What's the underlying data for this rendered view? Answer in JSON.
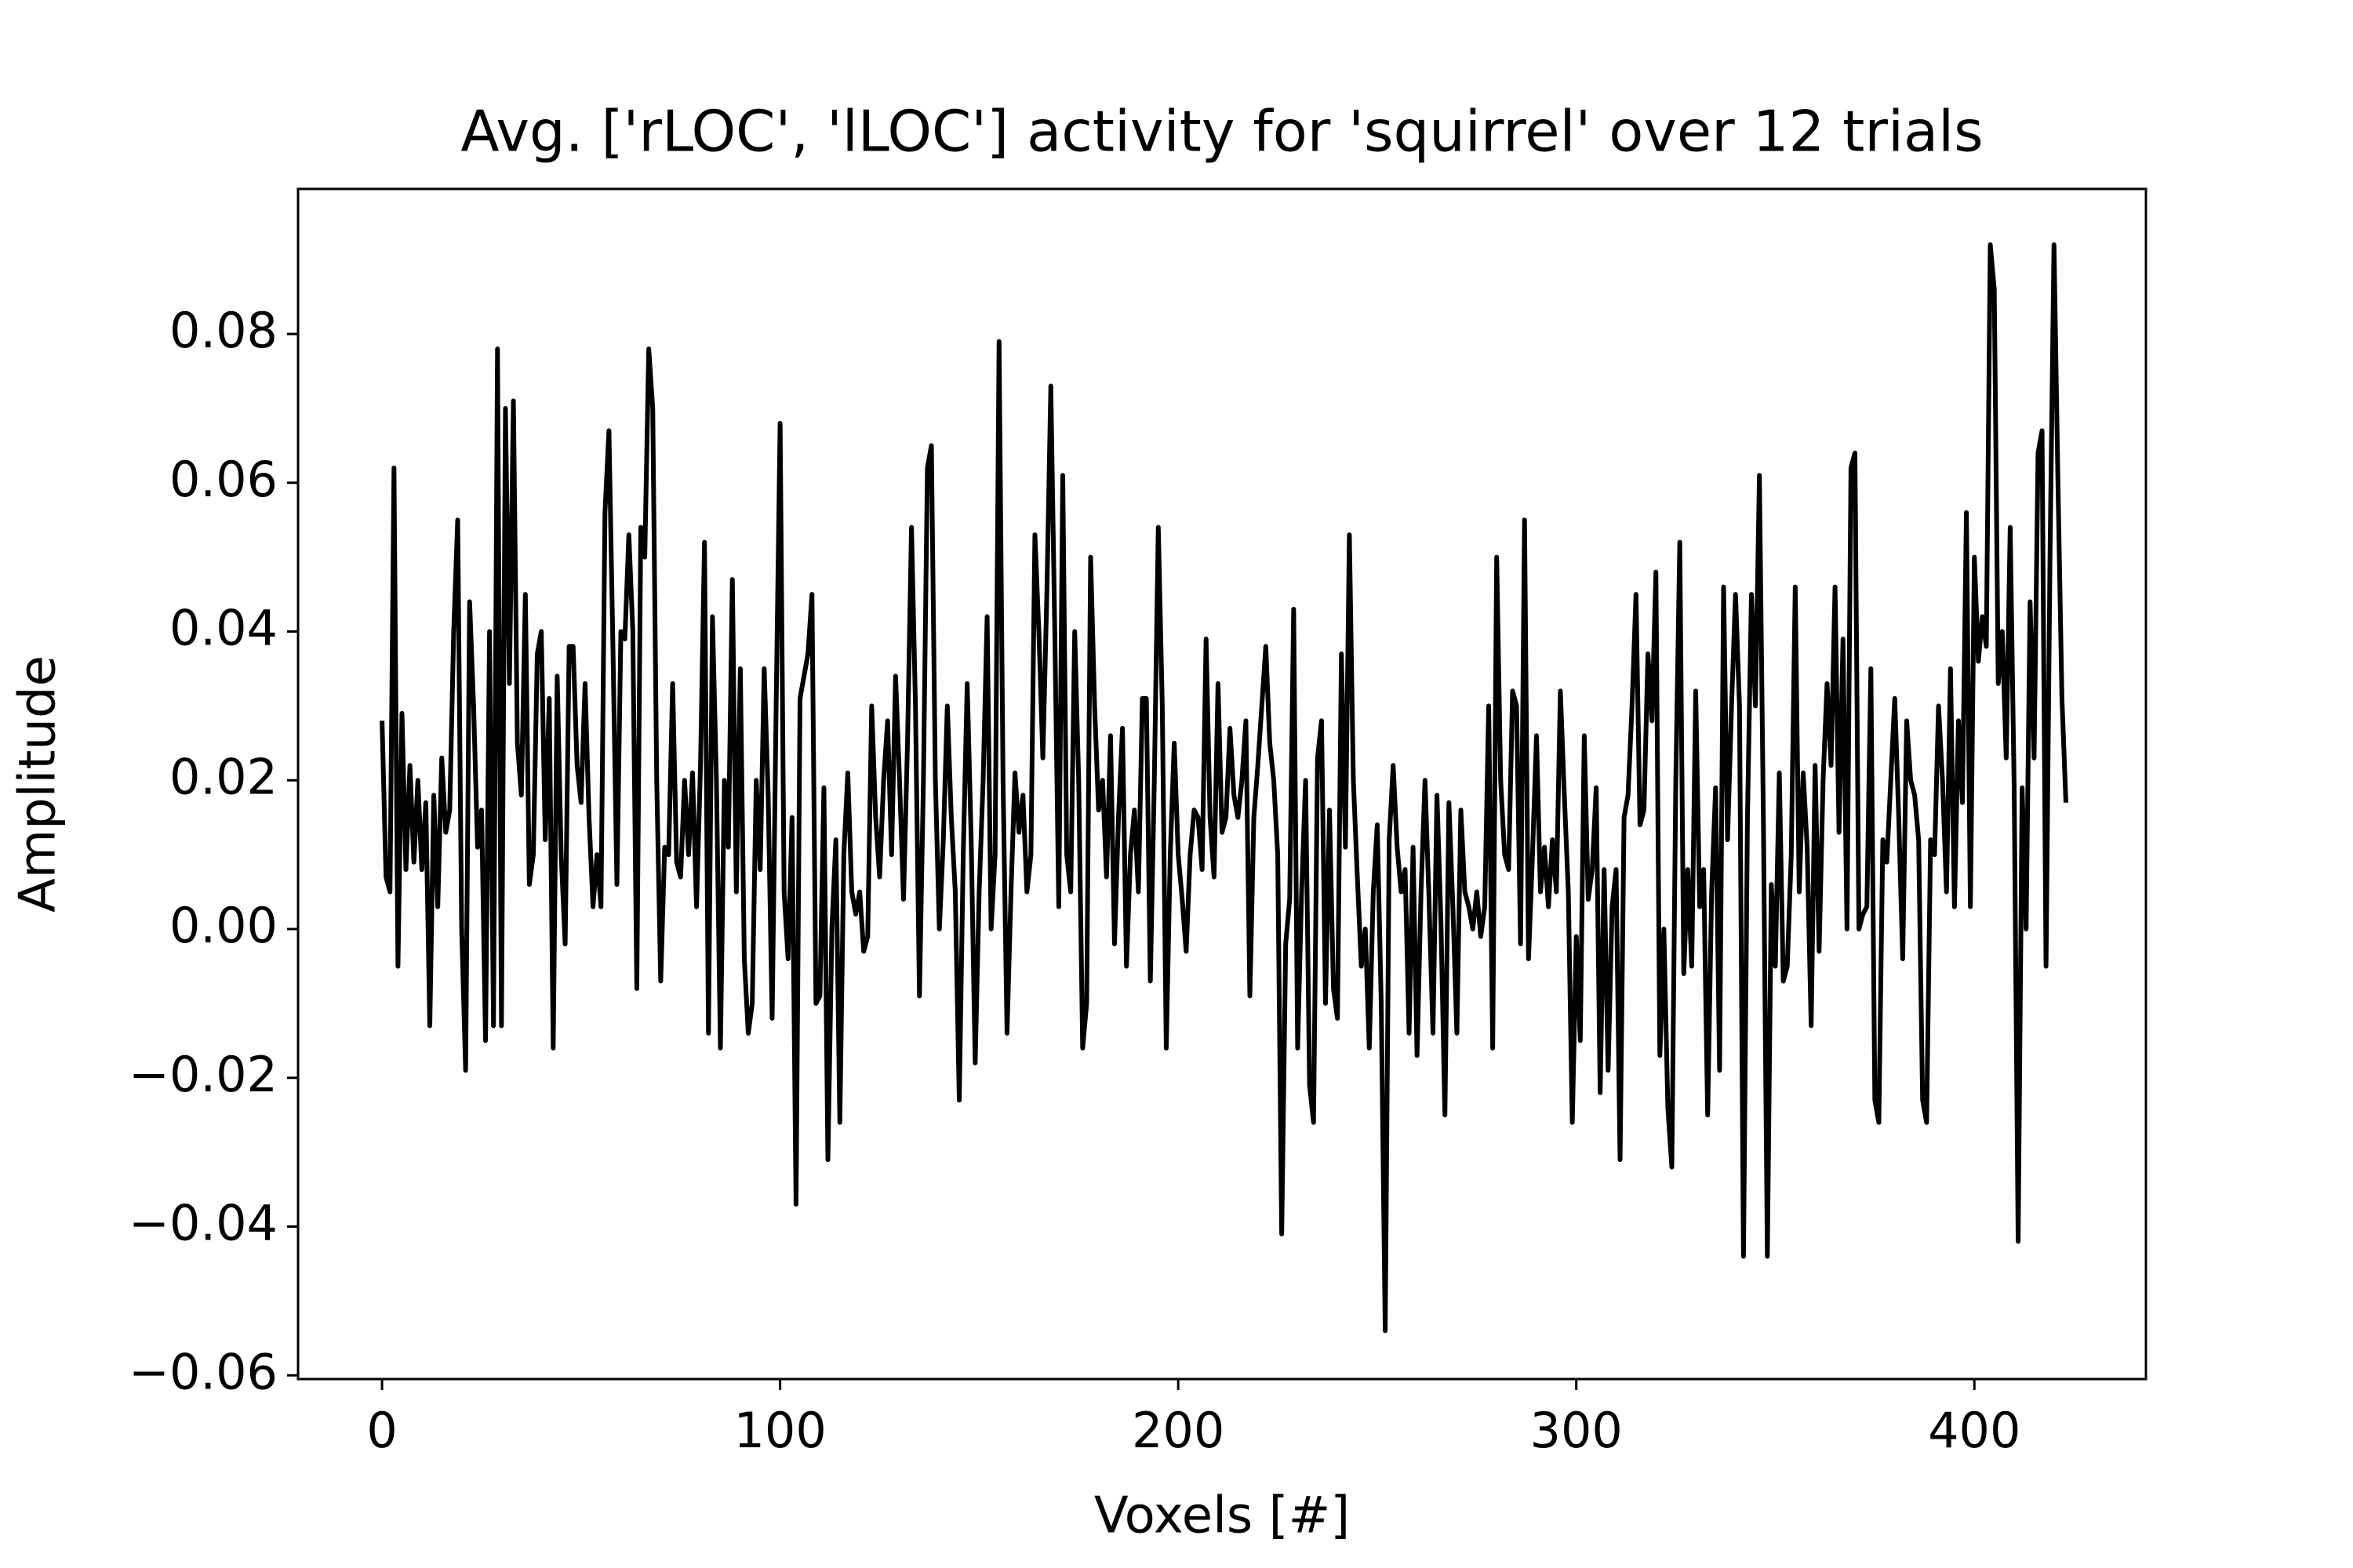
{
  "chart_data": {
    "type": "line",
    "title": "Avg. ['rLOC', 'lLOC'] activity for 'squirrel' over 12 trials",
    "x_label": "Voxels [#]",
    "y_label": "Amplitude",
    "xlim": [
      -21.1,
      443.1
    ],
    "ylim": [
      -0.0605,
      0.0995
    ],
    "xticks": [
      0,
      100,
      200,
      300,
      400
    ],
    "yticks": [
      {
        "value": -0.06,
        "label": "−0.06"
      },
      {
        "value": -0.04,
        "label": "−0.04"
      },
      {
        "value": -0.02,
        "label": "−0.02"
      },
      {
        "value": 0,
        "label": "0.00"
      },
      0.02,
      0.04,
      0.06,
      0.08
    ],
    "grid": false,
    "color": "#000000",
    "x": [
      0,
      1,
      2,
      3,
      4,
      5,
      6,
      7,
      8,
      9,
      10,
      11,
      12,
      13,
      14,
      15,
      16,
      17,
      18,
      19,
      20,
      21,
      22,
      23,
      24,
      25,
      26,
      27,
      28,
      29,
      30,
      31,
      32,
      33,
      34,
      35,
      36,
      37,
      38,
      39,
      40,
      41,
      42,
      43,
      44,
      45,
      46,
      47,
      48,
      49,
      50,
      51,
      52,
      53,
      54,
      55,
      56,
      57,
      58,
      59,
      60,
      61,
      62,
      63,
      64,
      65,
      66,
      67,
      68,
      69,
      70,
      71,
      72,
      73,
      74,
      75,
      76,
      77,
      78,
      79,
      80,
      81,
      82,
      83,
      84,
      85,
      86,
      87,
      88,
      89,
      90,
      91,
      92,
      93,
      94,
      95,
      96,
      97,
      98,
      99,
      100,
      101,
      102,
      103,
      104,
      105,
      106,
      107,
      108,
      109,
      110,
      111,
      112,
      113,
      114,
      115,
      116,
      117,
      118,
      119,
      120,
      121,
      122,
      123,
      124,
      125,
      126,
      127,
      128,
      129,
      130,
      131,
      132,
      133,
      134,
      135,
      136,
      137,
      138,
      139,
      140,
      141,
      142,
      143,
      144,
      145,
      146,
      147,
      148,
      149,
      150,
      151,
      152,
      153,
      154,
      155,
      156,
      157,
      158,
      159,
      160,
      161,
      162,
      163,
      164,
      165,
      166,
      167,
      168,
      169,
      170,
      171,
      172,
      173,
      174,
      175,
      176,
      177,
      178,
      179,
      180,
      181,
      182,
      183,
      184,
      185,
      186,
      187,
      188,
      189,
      190,
      191,
      192,
      193,
      194,
      195,
      196,
      197,
      198,
      199,
      200,
      201,
      202,
      203,
      204,
      205,
      206,
      207,
      208,
      209,
      210,
      211,
      212,
      213,
      214,
      215,
      216,
      217,
      218,
      219,
      220,
      221,
      222,
      223,
      224,
      225,
      226,
      227,
      228,
      229,
      230,
      231,
      232,
      233,
      234,
      235,
      236,
      237,
      238,
      239,
      240,
      241,
      242,
      243,
      244,
      245,
      246,
      247,
      248,
      249,
      250,
      251,
      252,
      253,
      254,
      255,
      256,
      257,
      258,
      259,
      260,
      261,
      262,
      263,
      264,
      265,
      266,
      267,
      268,
      269,
      270,
      271,
      272,
      273,
      274,
      275,
      276,
      277,
      278,
      279,
      280,
      281,
      282,
      283,
      284,
      285,
      286,
      287,
      288,
      289,
      290,
      291,
      292,
      293,
      294,
      295,
      296,
      297,
      298,
      299,
      300,
      301,
      302,
      303,
      304,
      305,
      306,
      307,
      308,
      309,
      310,
      311,
      312,
      313,
      314,
      315,
      316,
      317,
      318,
      319,
      320,
      321,
      322,
      323,
      324,
      325,
      326,
      327,
      328,
      329,
      330,
      331,
      332,
      333,
      334,
      335,
      336,
      337,
      338,
      339,
      340,
      341,
      342,
      343,
      344,
      345,
      346,
      347,
      348,
      349,
      350,
      351,
      352,
      353,
      354,
      355,
      356,
      357,
      358,
      359,
      360,
      361,
      362,
      363,
      364,
      365,
      366,
      367,
      368,
      369,
      370,
      371,
      372,
      373,
      374,
      375,
      376,
      377,
      378,
      379,
      380,
      381,
      382,
      383,
      384,
      385,
      386,
      387,
      388,
      389,
      390,
      391,
      392,
      393,
      394,
      395,
      396,
      397,
      398,
      399,
      400,
      401,
      402,
      403,
      404,
      405,
      406,
      407,
      408,
      409,
      410,
      411,
      412,
      413,
      414,
      415,
      416,
      417,
      418,
      419,
      420,
      421,
      422,
      423
    ],
    "values": [
      0.028,
      0.007,
      0.005,
      0.062,
      -0.005,
      0.029,
      0.008,
      0.022,
      0.009,
      0.02,
      0.008,
      0.017,
      -0.013,
      0.018,
      0.003,
      0.023,
      0.013,
      0.016,
      0.04,
      0.055,
      0.0,
      -0.019,
      0.044,
      0.03,
      0.011,
      0.016,
      -0.015,
      0.04,
      -0.013,
      0.078,
      -0.013,
      0.07,
      0.033,
      0.071,
      0.025,
      0.018,
      0.045,
      0.006,
      0.01,
      0.037,
      0.04,
      0.012,
      0.031,
      -0.016,
      0.034,
      0.01,
      -0.002,
      0.038,
      0.038,
      0.022,
      0.017,
      0.033,
      0.015,
      0.003,
      0.01,
      0.003,
      0.056,
      0.067,
      0.038,
      0.006,
      0.04,
      0.039,
      0.053,
      0.04,
      -0.008,
      0.054,
      0.05,
      0.078,
      0.07,
      0.02,
      -0.007,
      0.011,
      0.01,
      0.033,
      0.009,
      0.007,
      0.02,
      0.01,
      0.021,
      0.003,
      0.022,
      0.052,
      -0.014,
      0.042,
      0.02,
      -0.016,
      0.02,
      0.011,
      0.047,
      0.005,
      0.035,
      -0.004,
      -0.014,
      -0.01,
      0.02,
      0.008,
      0.035,
      0.018,
      -0.012,
      0.03,
      0.068,
      0.005,
      -0.004,
      0.015,
      -0.037,
      0.031,
      0.034,
      0.037,
      0.045,
      -0.01,
      -0.009,
      0.019,
      -0.031,
      0.0,
      0.012,
      -0.026,
      0.01,
      0.021,
      0.005,
      0.002,
      0.005,
      -0.003,
      -0.001,
      0.03,
      0.015,
      0.007,
      0.02,
      0.028,
      0.01,
      0.034,
      0.02,
      0.004,
      0.025,
      0.054,
      0.03,
      -0.009,
      0.02,
      0.062,
      0.065,
      0.02,
      0.0,
      0.012,
      0.03,
      0.015,
      0.005,
      -0.023,
      0.01,
      0.033,
      0.012,
      -0.018,
      0.005,
      0.02,
      0.042,
      0.0,
      0.01,
      0.079,
      0.02,
      -0.014,
      0.005,
      0.021,
      0.013,
      0.018,
      0.005,
      0.01,
      0.053,
      0.04,
      0.023,
      0.045,
      0.073,
      0.04,
      0.003,
      0.061,
      0.01,
      0.005,
      0.04,
      0.02,
      -0.016,
      -0.01,
      0.05,
      0.03,
      0.016,
      0.02,
      0.007,
      0.026,
      -0.002,
      0.015,
      0.027,
      -0.005,
      0.01,
      0.016,
      0.005,
      0.031,
      0.031,
      -0.007,
      0.02,
      0.054,
      0.03,
      -0.016,
      0.01,
      0.025,
      0.01,
      0.004,
      -0.003,
      0.01,
      0.016,
      0.015,
      0.008,
      0.039,
      0.015,
      0.007,
      0.033,
      0.013,
      0.015,
      0.027,
      0.018,
      0.015,
      0.02,
      0.028,
      -0.009,
      0.015,
      0.022,
      0.03,
      0.038,
      0.025,
      0.02,
      0.01,
      -0.041,
      -0.002,
      0.004,
      0.043,
      -0.016,
      0.005,
      0.02,
      -0.021,
      -0.026,
      0.023,
      0.028,
      -0.01,
      0.016,
      -0.008,
      -0.012,
      0.037,
      0.011,
      0.053,
      0.02,
      0.007,
      -0.005,
      0.0,
      -0.016,
      0.005,
      0.014,
      -0.01,
      -0.054,
      0.012,
      0.022,
      0.011,
      0.005,
      0.008,
      -0.014,
      0.011,
      -0.017,
      0.005,
      0.02,
      0.004,
      -0.014,
      0.018,
      0.001,
      -0.025,
      0.017,
      0.003,
      -0.014,
      0.016,
      0.005,
      0.003,
      0.0,
      0.005,
      -0.001,
      0.003,
      0.03,
      -0.016,
      0.05,
      0.02,
      0.01,
      0.008,
      0.032,
      0.03,
      -0.002,
      0.055,
      -0.004,
      0.01,
      0.026,
      0.005,
      0.011,
      0.003,
      0.012,
      0.005,
      0.032,
      0.018,
      0.005,
      -0.026,
      -0.001,
      -0.015,
      0.026,
      0.004,
      0.008,
      0.019,
      -0.022,
      0.008,
      -0.019,
      0.003,
      0.008,
      -0.031,
      0.015,
      0.018,
      0.03,
      0.045,
      0.014,
      0.016,
      0.037,
      0.028,
      0.048,
      -0.017,
      0.0,
      -0.024,
      -0.032,
      0.02,
      0.052,
      -0.006,
      0.008,
      -0.005,
      0.032,
      0.003,
      0.008,
      -0.025,
      0.005,
      0.019,
      -0.019,
      0.046,
      0.012,
      0.03,
      0.045,
      0.03,
      -0.044,
      0.015,
      0.045,
      0.03,
      0.061,
      0.015,
      -0.044,
      0.006,
      -0.005,
      0.021,
      -0.007,
      -0.005,
      0.01,
      0.046,
      0.005,
      0.021,
      0.011,
      -0.013,
      0.022,
      -0.003,
      0.02,
      0.033,
      0.022,
      0.046,
      0.013,
      0.039,
      0.0,
      0.062,
      0.064,
      0.0,
      0.002,
      0.003,
      0.035,
      -0.023,
      -0.026,
      0.012,
      0.009,
      0.02,
      0.031,
      0.015,
      -0.004,
      0.028,
      0.02,
      0.018,
      0.012,
      -0.023,
      -0.026,
      0.012,
      0.01,
      0.03,
      0.02,
      0.005,
      0.035,
      0.003,
      0.028,
      0.017,
      0.056,
      0.003,
      0.05,
      0.036,
      0.042,
      0.038,
      0.092,
      0.086,
      0.033,
      0.04,
      0.023,
      0.054,
      0.019,
      -0.042,
      0.019,
      0.0,
      0.044,
      0.023,
      0.064,
      0.067,
      -0.005,
      0.05,
      0.092,
      0.06,
      0.031,
      0.017
    ]
  }
}
